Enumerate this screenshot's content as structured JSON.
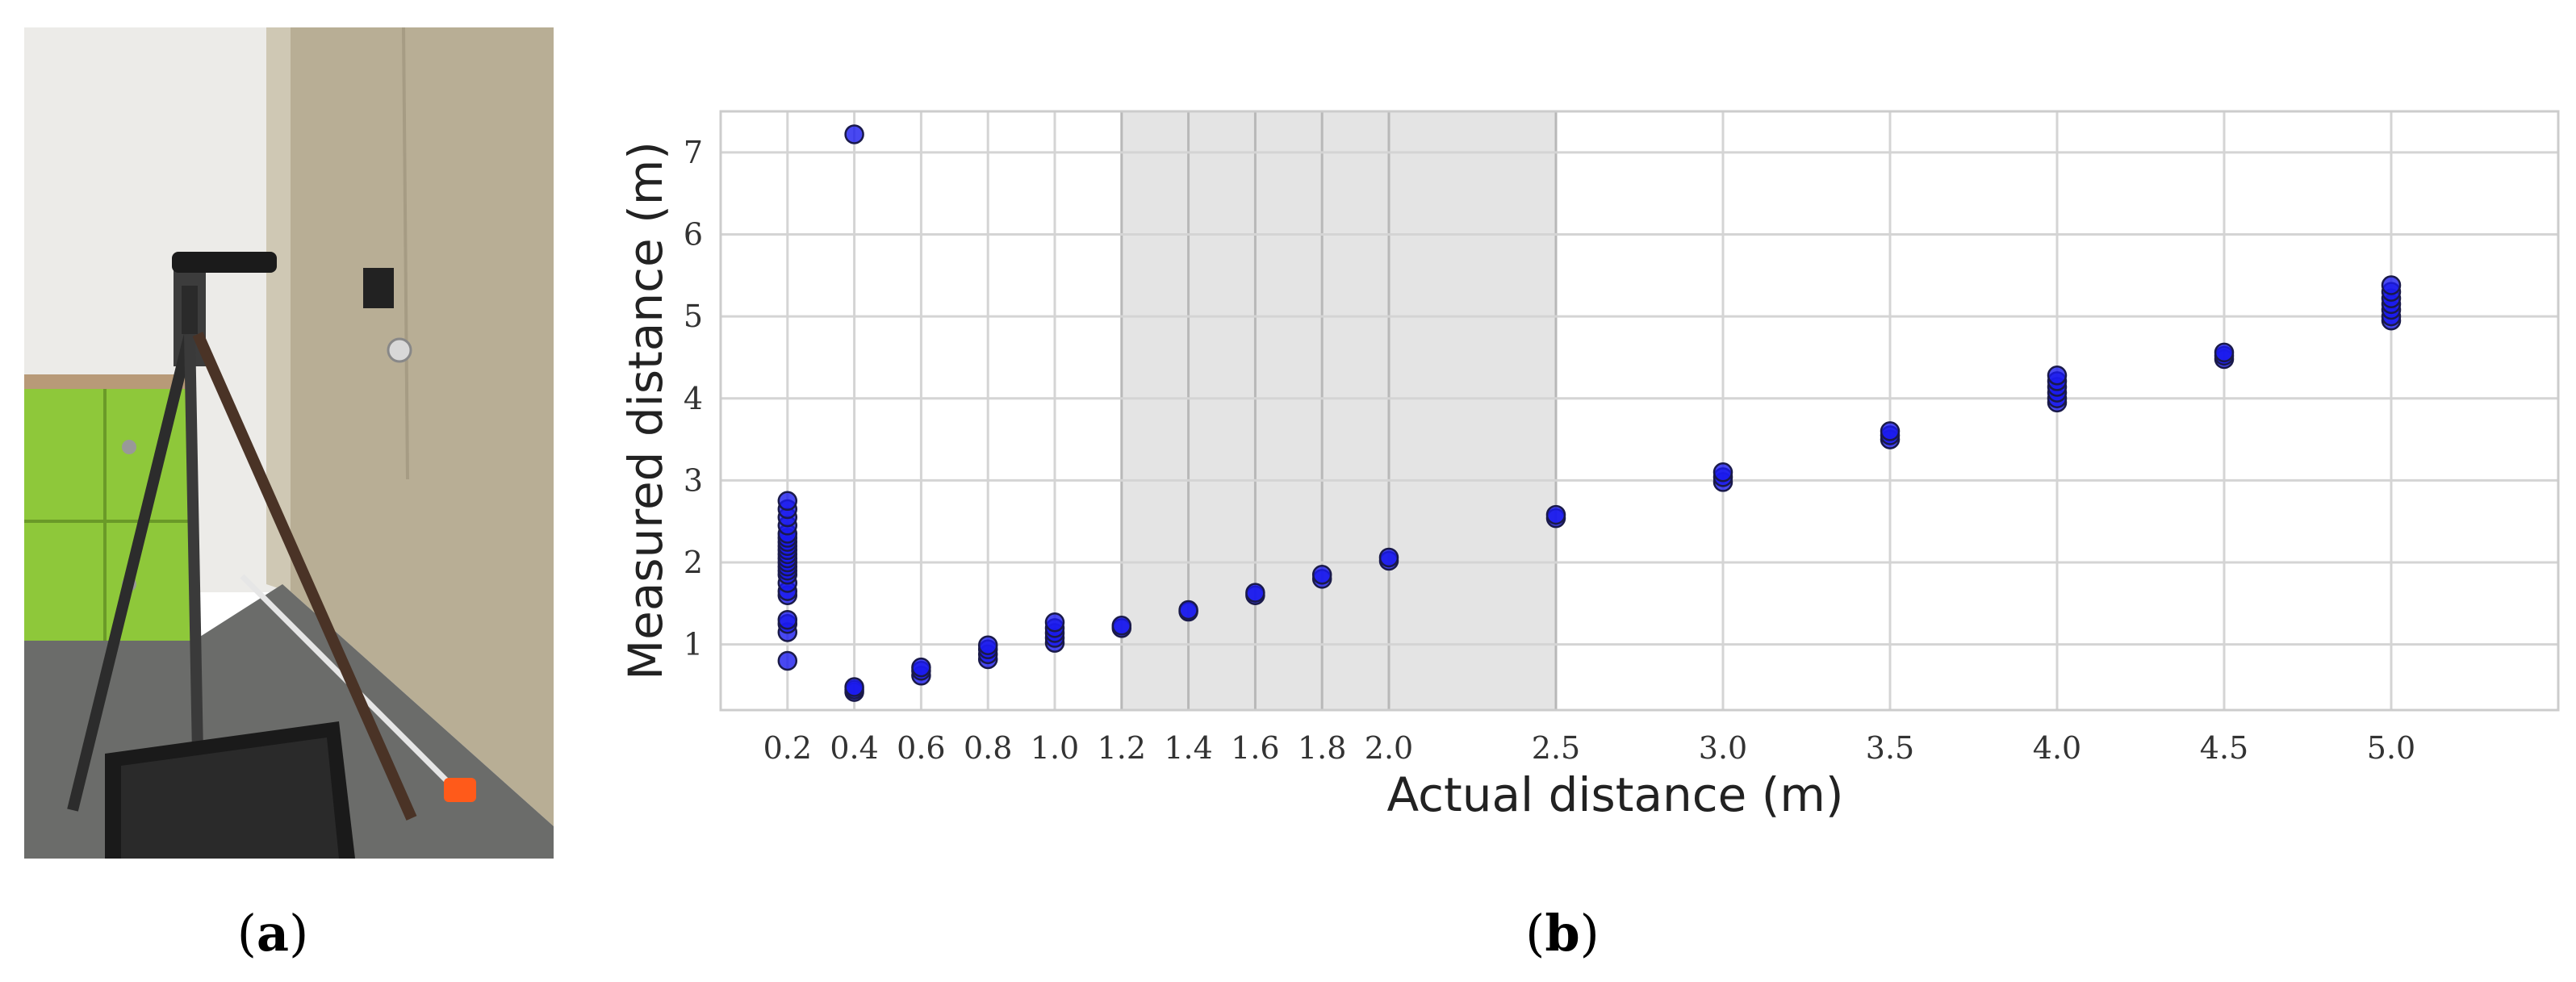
{
  "panels": {
    "a": {
      "paren_open": "(",
      "letter": "a",
      "paren_close": ")"
    },
    "b": {
      "paren_open": "(",
      "letter": "b",
      "paren_close": ")"
    }
  },
  "photo": {
    "description_icon": "photo-icon"
  },
  "colors": {
    "marker_fill": "#1a1aee",
    "marker_edge": "#1a1a4a",
    "grid": "#d4d4d4",
    "shade": "#e4e4e4",
    "shade_border": "#b8b8b8",
    "axes_edge": "#cccccc"
  },
  "chart_data": {
    "type": "scatter",
    "title": "",
    "xlabel": "Actual distance (m)",
    "ylabel": "Measured distance (m)",
    "xlim": [
      0.0,
      5.5
    ],
    "ylim": [
      0.2,
      7.5
    ],
    "xticks": [
      0.2,
      0.4,
      0.6,
      0.8,
      1.0,
      1.2,
      1.4,
      1.6,
      1.8,
      2.0,
      2.5,
      3.0,
      3.5,
      4.0,
      4.5,
      5.0
    ],
    "xtick_labels": [
      "0.2",
      "0.4",
      "0.6",
      "0.8",
      "1.0",
      "1.2",
      "1.4",
      "1.6",
      "1.8",
      "2.0",
      "2.5",
      "3.0",
      "3.5",
      "4.0",
      "4.5",
      "5.0"
    ],
    "yticks": [
      1,
      2,
      3,
      4,
      5,
      6,
      7
    ],
    "ytick_labels": [
      "1",
      "2",
      "3",
      "4",
      "5",
      "6",
      "7"
    ],
    "grid": true,
    "shaded_region": {
      "x": [
        1.2,
        2.5
      ]
    },
    "series": [
      {
        "points": [
          [
            0.2,
            0.8
          ],
          [
            0.2,
            1.15
          ],
          [
            0.2,
            1.25
          ],
          [
            0.2,
            1.3
          ],
          [
            0.2,
            1.6
          ],
          [
            0.2,
            1.65
          ],
          [
            0.2,
            1.75
          ],
          [
            0.2,
            1.85
          ],
          [
            0.2,
            1.9
          ],
          [
            0.2,
            1.95
          ],
          [
            0.2,
            2.0
          ],
          [
            0.2,
            2.05
          ],
          [
            0.2,
            2.1
          ],
          [
            0.2,
            2.15
          ],
          [
            0.2,
            2.2
          ],
          [
            0.2,
            2.25
          ],
          [
            0.2,
            2.3
          ],
          [
            0.2,
            2.35
          ],
          [
            0.2,
            2.45
          ],
          [
            0.2,
            2.55
          ],
          [
            0.2,
            2.65
          ],
          [
            0.2,
            2.75
          ],
          [
            0.4,
            0.42
          ],
          [
            0.4,
            0.45
          ],
          [
            0.4,
            0.48
          ],
          [
            0.4,
            7.22
          ],
          [
            0.6,
            0.62
          ],
          [
            0.6,
            0.68
          ],
          [
            0.6,
            0.72
          ],
          [
            0.8,
            0.82
          ],
          [
            0.8,
            0.88
          ],
          [
            0.8,
            0.94
          ],
          [
            0.8,
            0.99
          ],
          [
            1.0,
            1.02
          ],
          [
            1.0,
            1.08
          ],
          [
            1.0,
            1.14
          ],
          [
            1.0,
            1.2
          ],
          [
            1.0,
            1.27
          ],
          [
            1.2,
            1.2
          ],
          [
            1.2,
            1.23
          ],
          [
            1.4,
            1.4
          ],
          [
            1.4,
            1.42
          ],
          [
            1.6,
            1.6
          ],
          [
            1.6,
            1.63
          ],
          [
            1.8,
            1.8
          ],
          [
            1.8,
            1.85
          ],
          [
            2.0,
            2.02
          ],
          [
            2.0,
            2.06
          ],
          [
            2.5,
            2.54
          ],
          [
            2.5,
            2.58
          ],
          [
            3.0,
            2.98
          ],
          [
            3.0,
            3.04
          ],
          [
            3.0,
            3.1
          ],
          [
            3.5,
            3.5
          ],
          [
            3.5,
            3.55
          ],
          [
            3.5,
            3.6
          ],
          [
            4.0,
            3.95
          ],
          [
            4.0,
            4.0
          ],
          [
            4.0,
            4.07
          ],
          [
            4.0,
            4.14
          ],
          [
            4.0,
            4.21
          ],
          [
            4.0,
            4.28
          ],
          [
            4.5,
            4.48
          ],
          [
            4.5,
            4.52
          ],
          [
            4.5,
            4.56
          ],
          [
            5.0,
            4.95
          ],
          [
            5.0,
            5.0
          ],
          [
            5.0,
            5.08
          ],
          [
            5.0,
            5.15
          ],
          [
            5.0,
            5.22
          ],
          [
            5.0,
            5.3
          ],
          [
            5.0,
            5.38
          ]
        ]
      }
    ]
  }
}
